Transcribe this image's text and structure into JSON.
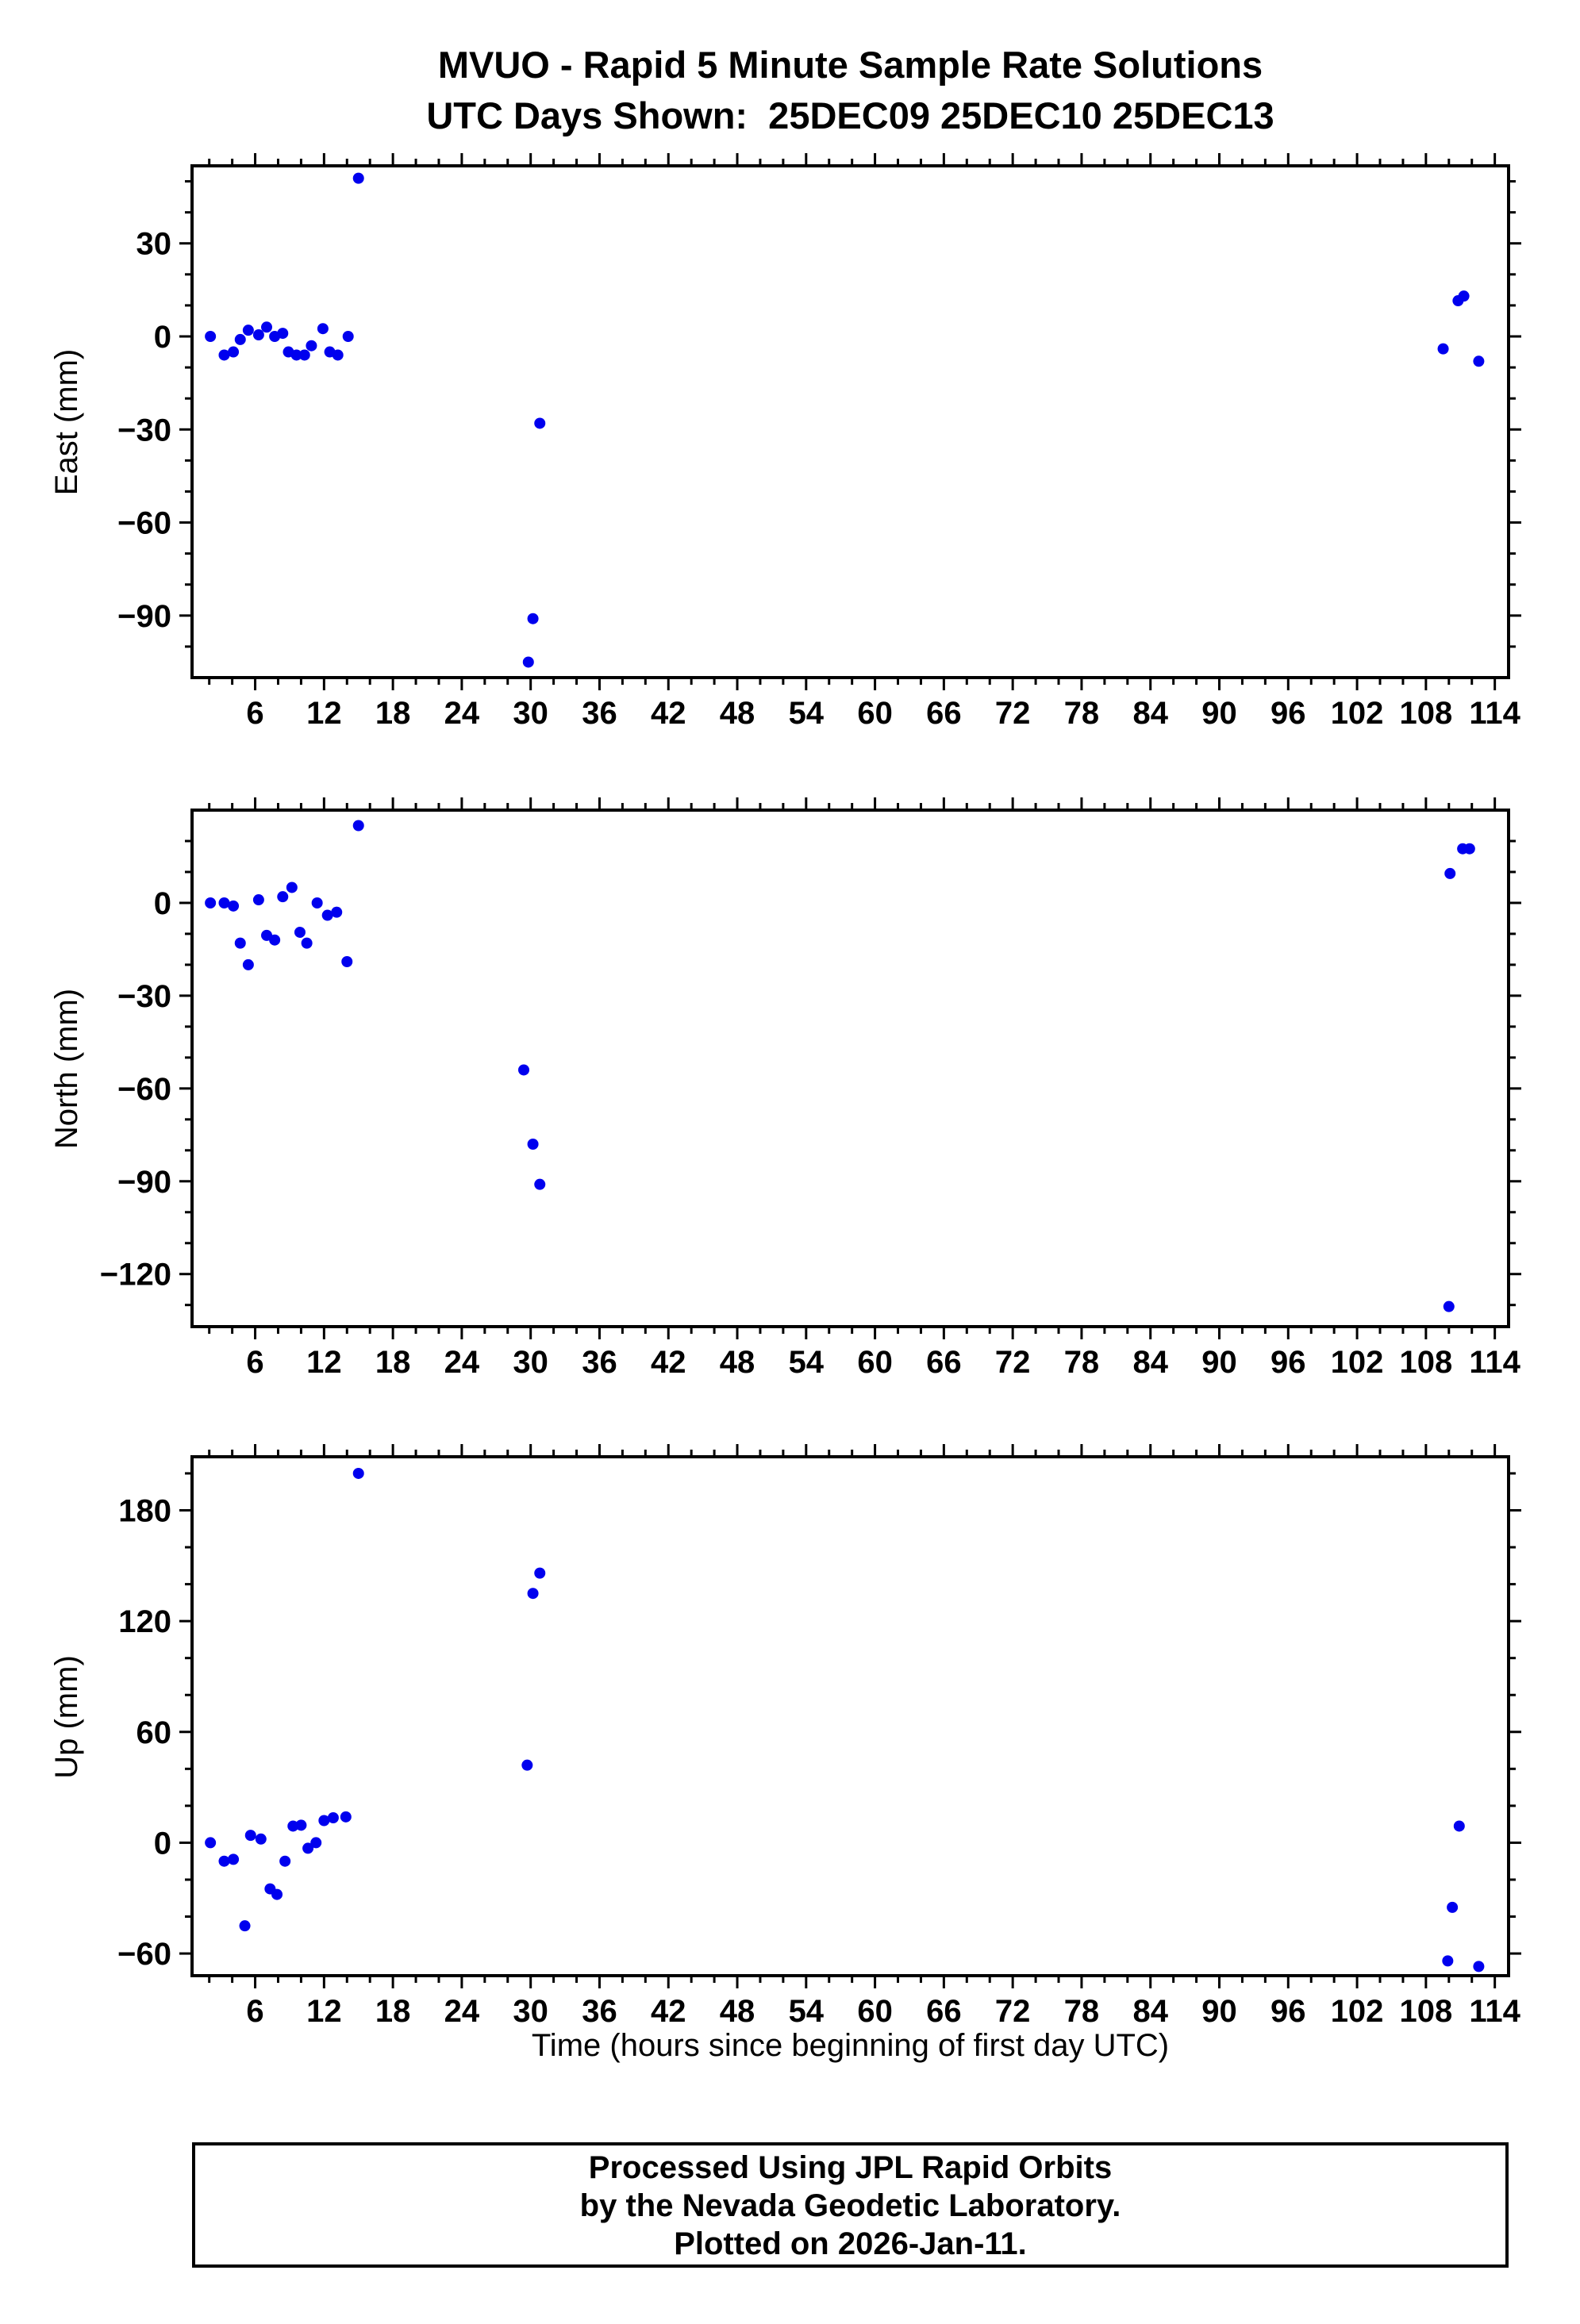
{
  "title": {
    "line1": "MVUO - Rapid 5 Minute Sample Rate Solutions",
    "line2": "UTC Days Shown:  25DEC09 25DEC10 25DEC13"
  },
  "xlabel": "Time (hours since beginning of first day UTC)",
  "footer": {
    "line1": "Processed Using JPL Rapid Orbits",
    "line2": "by the Nevada Geodetic Laboratory.",
    "line3": "Plotted on 2026-Jan-11."
  },
  "point_color": "#0000EE",
  "chart_data": [
    {
      "type": "scatter",
      "title": "East component time series",
      "ylabel": "East (mm)",
      "xlim": [
        0.5,
        115.2
      ],
      "ylim": [
        -110,
        55
      ],
      "xticks": [
        6,
        12,
        18,
        24,
        30,
        36,
        42,
        48,
        54,
        60,
        66,
        72,
        78,
        84,
        90,
        96,
        102,
        108,
        114
      ],
      "yticks": [
        30,
        0,
        -30,
        -60,
        -90
      ],
      "x_minor": 2,
      "y_minor": 10,
      "grid": false,
      "points": [
        [
          2.1,
          0
        ],
        [
          3.3,
          -6
        ],
        [
          4.1,
          -5
        ],
        [
          4.7,
          -1
        ],
        [
          5.4,
          2
        ],
        [
          6.3,
          0.5
        ],
        [
          7,
          3
        ],
        [
          7.7,
          0
        ],
        [
          8.4,
          1
        ],
        [
          8.9,
          -5
        ],
        [
          9.6,
          -6
        ],
        [
          10.3,
          -6
        ],
        [
          10.9,
          -3
        ],
        [
          11.9,
          2.5
        ],
        [
          12.5,
          -5
        ],
        [
          13.2,
          -6
        ],
        [
          14.1,
          0
        ],
        [
          15,
          51
        ],
        [
          29.8,
          -105
        ],
        [
          30.2,
          -91
        ],
        [
          30.8,
          -28
        ],
        [
          109.5,
          -4
        ],
        [
          110.8,
          11.5
        ],
        [
          111.3,
          13
        ],
        [
          112.6,
          -8
        ]
      ]
    },
    {
      "type": "scatter",
      "title": "North component time series",
      "ylabel": "North (mm)",
      "xlim": [
        0.5,
        115.2
      ],
      "ylim": [
        -137,
        30
      ],
      "xticks": [
        6,
        12,
        18,
        24,
        30,
        36,
        42,
        48,
        54,
        60,
        66,
        72,
        78,
        84,
        90,
        96,
        102,
        108,
        114
      ],
      "yticks": [
        0,
        -30,
        -60,
        -90,
        -120
      ],
      "x_minor": 2,
      "y_minor": 10,
      "grid": false,
      "points": [
        [
          2.1,
          0
        ],
        [
          3.3,
          0
        ],
        [
          4.1,
          -1
        ],
        [
          4.7,
          -13
        ],
        [
          5.4,
          -20
        ],
        [
          6.3,
          1
        ],
        [
          7,
          -10.5
        ],
        [
          7.7,
          -12
        ],
        [
          8.4,
          2
        ],
        [
          9.2,
          5
        ],
        [
          9.9,
          -9.5
        ],
        [
          10.5,
          -13
        ],
        [
          11.4,
          0
        ],
        [
          12.3,
          -4
        ],
        [
          13.1,
          -3
        ],
        [
          14,
          -19
        ],
        [
          15,
          25
        ],
        [
          29.4,
          -54
        ],
        [
          30.2,
          -78
        ],
        [
          30.8,
          -91
        ],
        [
          110.1,
          9.5
        ],
        [
          111.2,
          17.5
        ],
        [
          111.8,
          17.5
        ],
        [
          110,
          -130.5
        ]
      ]
    },
    {
      "type": "scatter",
      "title": "Up component time series",
      "ylabel": "Up (mm)",
      "xlim": [
        0.5,
        115.2
      ],
      "ylim": [
        -72,
        209
      ],
      "xticks": [
        6,
        12,
        18,
        24,
        30,
        36,
        42,
        48,
        54,
        60,
        66,
        72,
        78,
        84,
        90,
        96,
        102,
        108,
        114
      ],
      "yticks": [
        180,
        120,
        60,
        0,
        -60
      ],
      "x_minor": 2,
      "y_minor": 20,
      "grid": false,
      "points": [
        [
          2.1,
          0
        ],
        [
          3.3,
          -10
        ],
        [
          4.1,
          -9
        ],
        [
          5.1,
          -45
        ],
        [
          5.6,
          4
        ],
        [
          6.5,
          2
        ],
        [
          7.3,
          -25
        ],
        [
          7.9,
          -28
        ],
        [
          8.6,
          -10
        ],
        [
          9.3,
          9
        ],
        [
          10,
          9.5
        ],
        [
          10.6,
          -3
        ],
        [
          11.3,
          0
        ],
        [
          12,
          12
        ],
        [
          12.8,
          13.5
        ],
        [
          13.9,
          14
        ],
        [
          15,
          200
        ],
        [
          29.7,
          42
        ],
        [
          30.2,
          135
        ],
        [
          30.8,
          146
        ],
        [
          110.9,
          9
        ],
        [
          110.3,
          -35
        ],
        [
          109.9,
          -64
        ],
        [
          112.6,
          -67
        ]
      ]
    }
  ]
}
